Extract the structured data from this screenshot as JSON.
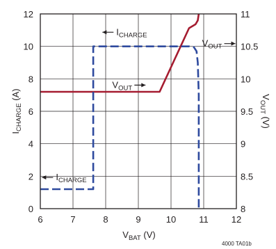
{
  "chart_data": {
    "type": "line",
    "id_label": "4000 TA01b",
    "x_axis": {
      "label_main": "V",
      "label_sub": "BAT",
      "label_unit": " (V)",
      "range": [
        6,
        12
      ],
      "ticks": [
        6,
        7,
        8,
        9,
        10,
        11,
        12
      ]
    },
    "y_left": {
      "label_main": "I",
      "label_sub": "CHARGE",
      "label_unit": " (A)",
      "range": [
        0,
        12
      ],
      "ticks": [
        0,
        2,
        4,
        6,
        8,
        10,
        12
      ]
    },
    "y_right": {
      "label_main": "V",
      "label_sub": "OUT",
      "label_unit": " (V)",
      "range": [
        8,
        11
      ],
      "ticks": [
        "8",
        "8.5",
        "9",
        "9.5",
        "10",
        "10.5",
        "11"
      ]
    },
    "grid": true,
    "series": [
      {
        "name": "VOUT",
        "axis": "right",
        "color": "#a51c30",
        "style": "solid",
        "x": [
          6.0,
          9.65,
          10.55,
          10.75,
          10.82,
          10.85
        ],
        "y": [
          9.8,
          9.8,
          10.78,
          10.84,
          10.9,
          11.0
        ]
      },
      {
        "name": "ICHARGE",
        "axis": "left",
        "color": "#2e4a9e",
        "style": "dashed",
        "x": [
          6.0,
          7.62,
          7.62,
          10.55,
          10.7,
          10.78,
          10.82,
          10.85,
          10.85
        ],
        "y": [
          1.2,
          1.2,
          10.0,
          10.0,
          9.95,
          9.7,
          9.0,
          7.0,
          0.0
        ]
      }
    ],
    "annotations": [
      {
        "text_main": "I",
        "text_sub": "CHARGE",
        "arrow": "left",
        "x": 7.9,
        "y": 10.7,
        "axis": "left"
      },
      {
        "text_main": "V",
        "text_sub": "OUT",
        "arrow": "right",
        "x": 10.95,
        "y": 10.5,
        "axis": "right"
      },
      {
        "text_main": "V",
        "text_sub": "OUT",
        "arrow": "right",
        "x": 8.2,
        "y": 9.86,
        "axis": "right"
      },
      {
        "text_main": "I",
        "text_sub": "CHARGE",
        "arrow": "left",
        "x": 6.05,
        "y": 1.75,
        "axis": "left"
      }
    ]
  }
}
